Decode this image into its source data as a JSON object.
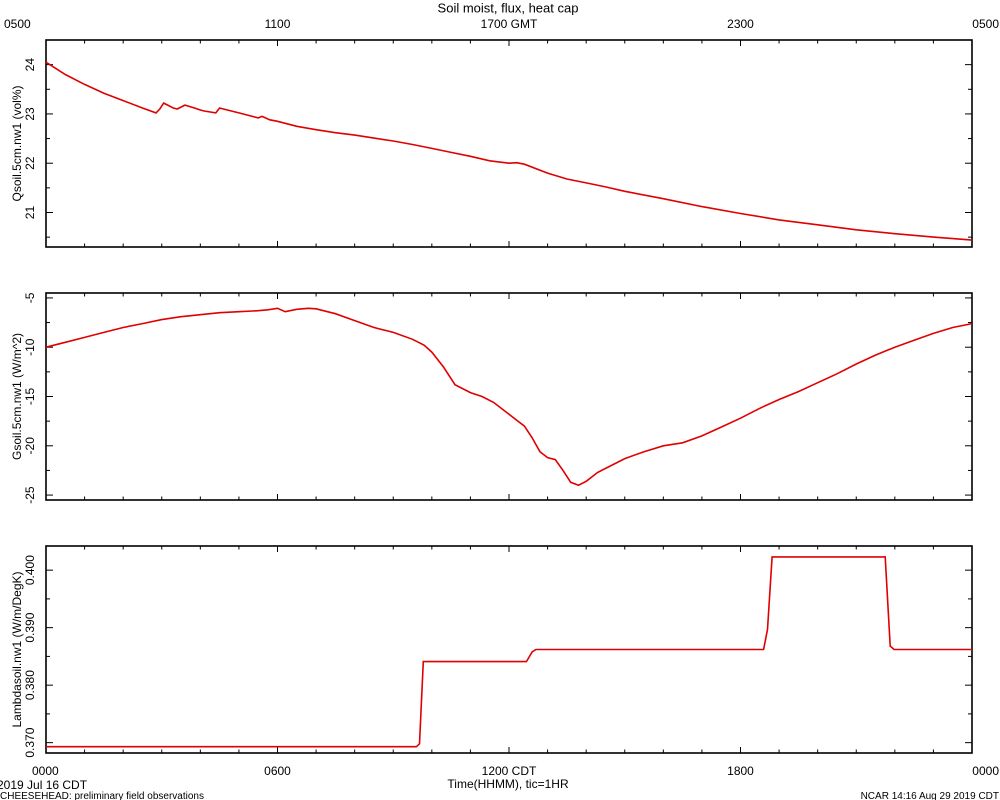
{
  "chart_data": {
    "type": "line",
    "title": "Soil moist, flux, heat cap",
    "top_axis": {
      "ticks": [
        "0500",
        "1100",
        "1700 GMT",
        "2300",
        "0500"
      ]
    },
    "bottom_axis": {
      "ticks": [
        "0000",
        "0600",
        "1200 CDT",
        "1800",
        "0000"
      ],
      "xlabel": "Time(HHMM), tic=1HR",
      "range_hours": [
        0,
        24
      ]
    },
    "footer": {
      "date": "2019 Jul 16 CDT",
      "project": "CHEESEHEAD: preliminary field observations",
      "stamp": "NCAR 14:16 Aug 29 2019 CDT"
    },
    "panels": [
      {
        "ylabel": "Qsoil.5cm.nw1 (vol%)",
        "ylim": [
          20.3,
          24.5
        ],
        "yticks": [
          {
            "v": 21,
            "label": "21"
          },
          {
            "v": 22,
            "label": "22"
          },
          {
            "v": 23,
            "label": "23"
          },
          {
            "v": 24,
            "label": "24"
          }
        ],
        "ysubticks": [
          20.5,
          21.5,
          22.5,
          23.5,
          24.5
        ],
        "x": [
          0,
          0.5,
          1,
          1.5,
          2,
          2.5,
          2.85,
          2.95,
          3.05,
          3.3,
          3.4,
          3.6,
          3.85,
          4.0,
          4.1,
          4.4,
          4.5,
          4.7,
          5.0,
          5.5,
          5.6,
          5.8,
          6.0,
          6.5,
          7.0,
          7.5,
          8.0,
          8.5,
          9.0,
          9.5,
          10.0,
          10.5,
          11.0,
          11.5,
          12.0,
          12.2,
          12.4,
          13.0,
          13.5,
          14.0,
          14.5,
          15.0,
          16.0,
          17.0,
          18.0,
          19.0,
          20.0,
          21.0,
          22.0,
          23.0,
          24.0
        ],
        "y": [
          24.05,
          23.8,
          23.6,
          23.42,
          23.27,
          23.12,
          23.02,
          23.1,
          23.22,
          23.12,
          23.1,
          23.18,
          23.12,
          23.08,
          23.06,
          23.02,
          23.12,
          23.08,
          23.02,
          22.92,
          22.95,
          22.88,
          22.85,
          22.75,
          22.68,
          22.62,
          22.57,
          22.51,
          22.45,
          22.38,
          22.3,
          22.22,
          22.14,
          22.05,
          22.0,
          22.01,
          21.98,
          21.8,
          21.68,
          21.6,
          21.52,
          21.43,
          21.28,
          21.12,
          20.98,
          20.85,
          20.75,
          20.65,
          20.57,
          20.5,
          20.44
        ]
      },
      {
        "ylabel": "Gsoil.5cm.nw1 (W/m^2)",
        "ylim": [
          -25.5,
          -4.5
        ],
        "yticks": [
          {
            "v": -25,
            "label": "-25"
          },
          {
            "v": -20,
            "label": "-20"
          },
          {
            "v": -15,
            "label": "-15"
          },
          {
            "v": -10,
            "label": "-10"
          },
          {
            "v": -5,
            "label": "-5"
          }
        ],
        "ysubticks": [
          -22.5,
          -17.5,
          -12.5,
          -7.5
        ],
        "x": [
          0,
          0.5,
          1,
          1.5,
          2,
          2.5,
          3,
          3.5,
          4,
          4.5,
          5,
          5.5,
          5.75,
          6.0,
          6.2,
          6.5,
          6.8,
          7.0,
          7.5,
          8.0,
          8.5,
          9.0,
          9.5,
          9.8,
          10.0,
          10.3,
          10.6,
          11.0,
          11.3,
          11.6,
          12.0,
          12.2,
          12.4,
          12.6,
          12.8,
          13.0,
          13.2,
          13.4,
          13.6,
          13.8,
          14.0,
          14.3,
          14.6,
          15.0,
          15.5,
          16.0,
          16.5,
          17.0,
          17.5,
          18.0,
          18.5,
          19.0,
          19.5,
          20.0,
          20.5,
          21.0,
          21.5,
          22.0,
          22.5,
          23.0,
          23.5,
          24.0
        ],
        "y": [
          -10.0,
          -9.5,
          -9.0,
          -8.5,
          -8.0,
          -7.6,
          -7.2,
          -6.9,
          -6.7,
          -6.5,
          -6.4,
          -6.3,
          -6.2,
          -6.05,
          -6.4,
          -6.15,
          -6.05,
          -6.1,
          -6.6,
          -7.3,
          -8.0,
          -8.5,
          -9.2,
          -9.8,
          -10.5,
          -12.0,
          -13.8,
          -14.6,
          -15.0,
          -15.6,
          -16.8,
          -17.4,
          -18.0,
          -19.2,
          -20.6,
          -21.2,
          -21.4,
          -22.5,
          -23.7,
          -24.0,
          -23.6,
          -22.7,
          -22.1,
          -21.3,
          -20.6,
          -20.0,
          -19.7,
          -19.0,
          -18.1,
          -17.2,
          -16.2,
          -15.3,
          -14.5,
          -13.6,
          -12.7,
          -11.7,
          -10.8,
          -10.0,
          -9.3,
          -8.6,
          -8.0,
          -7.6
        ]
      },
      {
        "ylabel": "Lambdasoil.nw1 (W/m/DegK)",
        "ylim": [
          0.3682,
          0.4042
        ],
        "yticks": [
          {
            "v": 0.37,
            "label": "0.370"
          },
          {
            "v": 0.38,
            "label": "0.380"
          },
          {
            "v": 0.39,
            "label": "0.390"
          },
          {
            "v": 0.4,
            "label": "0.400"
          }
        ],
        "ysubticks": [
          0.375,
          0.385,
          0.395
        ],
        "x": [
          0,
          9.6,
          9.68,
          9.78,
          12.45,
          12.6,
          12.7,
          18.6,
          18.7,
          18.82,
          21.75,
          21.88,
          21.98,
          24.0
        ],
        "y": [
          0.3693,
          0.3693,
          0.3698,
          0.3841,
          0.3841,
          0.3858,
          0.3862,
          0.3862,
          0.3897,
          0.4023,
          0.4023,
          0.3868,
          0.3862,
          0.3862
        ]
      }
    ]
  }
}
